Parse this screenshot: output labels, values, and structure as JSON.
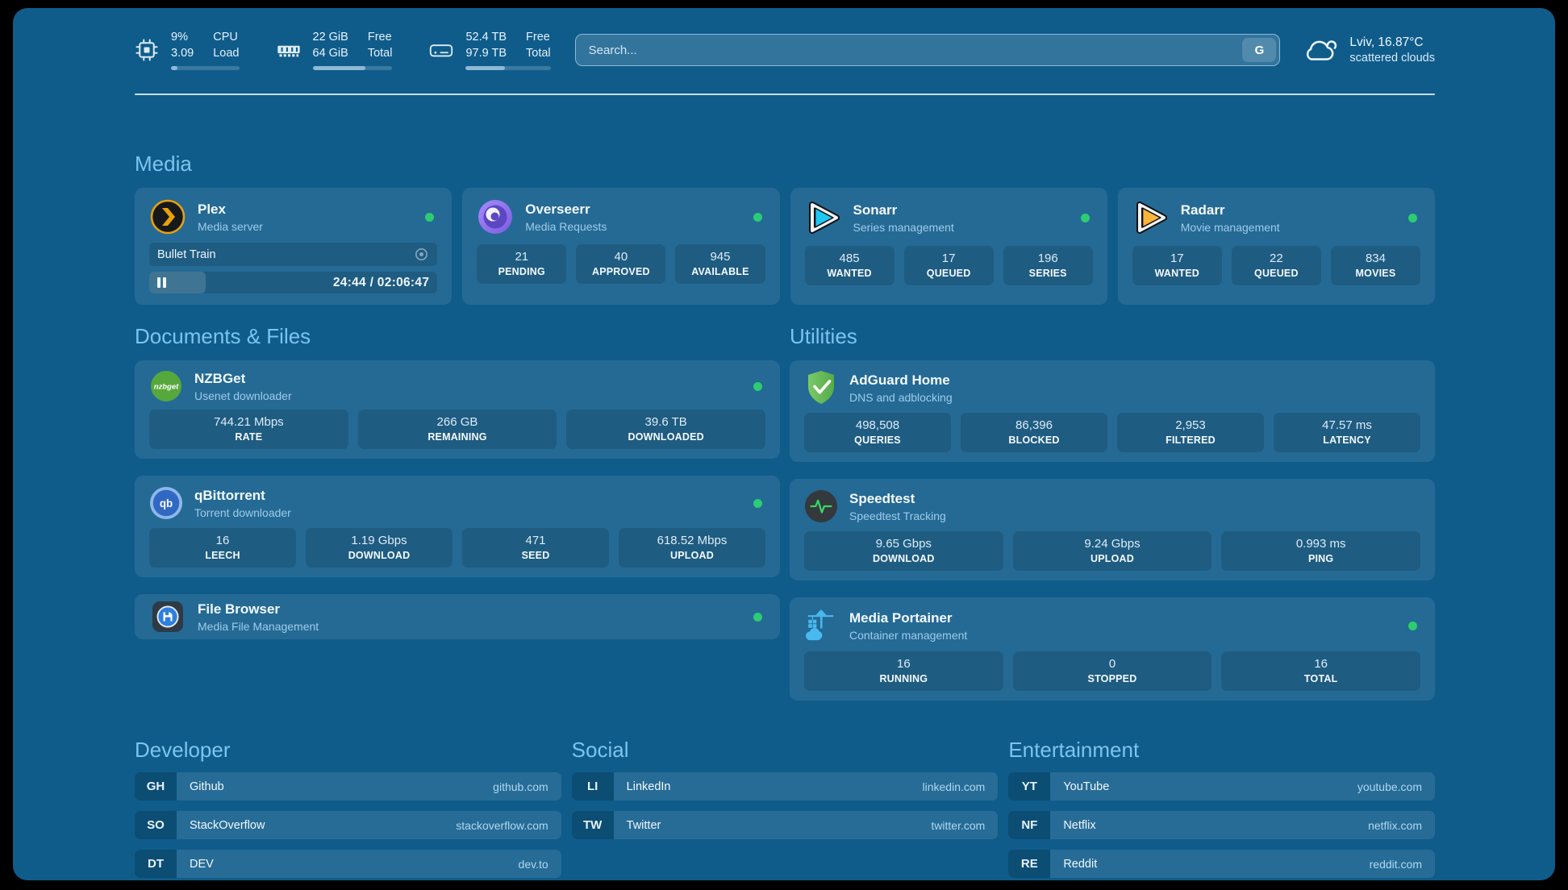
{
  "colors": {
    "background": "#0f5c8b",
    "card": "#226c97",
    "accent": "#7cc4ee",
    "status_online": "#2bcd70",
    "progress_fill": "#8fb9d5"
  },
  "topbar": {
    "stats": [
      {
        "icon": "cpu-chip-icon",
        "value_top": "9%",
        "value_bottom": "3.09",
        "label_top": "CPU",
        "label_bottom": "Load",
        "progress_percent": 9
      },
      {
        "icon": "memory-icon",
        "value_top": "22 GiB",
        "value_bottom": "64 GiB",
        "label_top": "Free",
        "label_bottom": "Total",
        "progress_percent": 66
      },
      {
        "icon": "disk-icon",
        "value_top": "52.4 TB",
        "value_bottom": "97.9 TB",
        "label_top": "Free",
        "label_bottom": "Total",
        "progress_percent": 46
      }
    ],
    "search": {
      "placeholder": "Search...",
      "button_label": "G"
    },
    "weather": {
      "icon": "cloud-icon",
      "location": "Lviv, 16.87°C",
      "condition": "scattered clouds"
    }
  },
  "media": {
    "title": "Media",
    "plex": {
      "name": "Plex",
      "subtitle": "Media server",
      "status": "online",
      "now_playing": "Bullet Train",
      "time": "24:44 / 02:06:47",
      "progress_percent": 19.5
    },
    "overseerr": {
      "name": "Overseerr",
      "subtitle": "Media Requests",
      "status": "online",
      "stats": [
        {
          "value": "21",
          "label": "PENDING"
        },
        {
          "value": "40",
          "label": "APPROVED"
        },
        {
          "value": "945",
          "label": "AVAILABLE"
        }
      ]
    },
    "sonarr": {
      "name": "Sonarr",
      "subtitle": "Series management",
      "status": "online",
      "stats": [
        {
          "value": "485",
          "label": "WANTED"
        },
        {
          "value": "17",
          "label": "QUEUED"
        },
        {
          "value": "196",
          "label": "SERIES"
        }
      ]
    },
    "radarr": {
      "name": "Radarr",
      "subtitle": "Movie management",
      "status": "online",
      "stats": [
        {
          "value": "17",
          "label": "WANTED"
        },
        {
          "value": "22",
          "label": "QUEUED"
        },
        {
          "value": "834",
          "label": "MOVIES"
        }
      ]
    }
  },
  "documents": {
    "title": "Documents & Files",
    "nzbget": {
      "name": "NZBGet",
      "subtitle": "Usenet downloader",
      "status": "online",
      "icon_text": "nzbget",
      "stats": [
        {
          "value": "744.21 Mbps",
          "label": "RATE"
        },
        {
          "value": "266 GB",
          "label": "REMAINING"
        },
        {
          "value": "39.6 TB",
          "label": "DOWNLOADED"
        }
      ]
    },
    "qbittorrent": {
      "name": "qBittorrent",
      "subtitle": "Torrent downloader",
      "status": "online",
      "icon_text": "qb",
      "stats": [
        {
          "value": "16",
          "label": "LEECH"
        },
        {
          "value": "1.19 Gbps",
          "label": "DOWNLOAD"
        },
        {
          "value": "471",
          "label": "SEED"
        },
        {
          "value": "618.52 Mbps",
          "label": "UPLOAD"
        }
      ]
    },
    "filebrowser": {
      "name": "File Browser",
      "subtitle": "Media File Management",
      "status": "online"
    }
  },
  "utilities": {
    "title": "Utilities",
    "adguard": {
      "name": "AdGuard Home",
      "subtitle": "DNS and adblocking",
      "stats": [
        {
          "value": "498,508",
          "label": "QUERIES"
        },
        {
          "value": "86,396",
          "label": "BLOCKED"
        },
        {
          "value": "2,953",
          "label": "FILTERED"
        },
        {
          "value": "47.57 ms",
          "label": "LATENCY"
        }
      ]
    },
    "speedtest": {
      "name": "Speedtest",
      "subtitle": "Speedtest Tracking",
      "stats": [
        {
          "value": "9.65 Gbps",
          "label": "DOWNLOAD"
        },
        {
          "value": "9.24 Gbps",
          "label": "UPLOAD"
        },
        {
          "value": "0.993 ms",
          "label": "PING"
        }
      ]
    },
    "portainer": {
      "name": "Media Portainer",
      "subtitle": "Container management",
      "status": "online",
      "stats": [
        {
          "value": "16",
          "label": "RUNNING"
        },
        {
          "value": "0",
          "label": "STOPPED"
        },
        {
          "value": "16",
          "label": "TOTAL"
        }
      ]
    }
  },
  "links": {
    "developer": {
      "title": "Developer",
      "items": [
        {
          "abbr": "GH",
          "name": "Github",
          "url": "github.com"
        },
        {
          "abbr": "SO",
          "name": "StackOverflow",
          "url": "stackoverflow.com"
        },
        {
          "abbr": "DT",
          "name": "DEV",
          "url": "dev.to"
        }
      ]
    },
    "social": {
      "title": "Social",
      "items": [
        {
          "abbr": "LI",
          "name": "LinkedIn",
          "url": "linkedin.com"
        },
        {
          "abbr": "TW",
          "name": "Twitter",
          "url": "twitter.com"
        }
      ]
    },
    "entertainment": {
      "title": "Entertainment",
      "items": [
        {
          "abbr": "YT",
          "name": "YouTube",
          "url": "youtube.com"
        },
        {
          "abbr": "NF",
          "name": "Netflix",
          "url": "netflix.com"
        },
        {
          "abbr": "RE",
          "name": "Reddit",
          "url": "reddit.com"
        }
      ]
    }
  }
}
